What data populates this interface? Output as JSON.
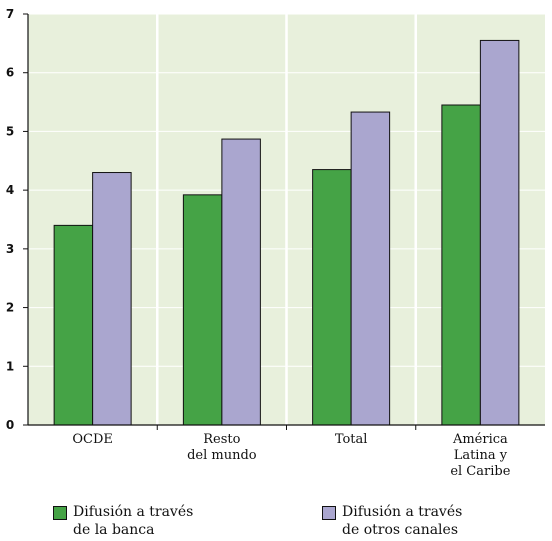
{
  "chart_data": {
    "type": "bar",
    "categories": [
      [
        "OCDE"
      ],
      [
        "Resto",
        "del mundo"
      ],
      [
        "Total"
      ],
      [
        "América",
        "Latina y",
        "el Caribe"
      ]
    ],
    "series": [
      {
        "name": "Difusión a través\nde la banca",
        "color": "#45a346",
        "values": [
          3.4,
          3.92,
          4.35,
          5.45
        ]
      },
      {
        "name": "Difusión a través\nde otros canales",
        "color": "#aaa6cf",
        "values": [
          4.3,
          4.87,
          5.33,
          6.55
        ]
      }
    ],
    "ylim": [
      0,
      7
    ],
    "yticks": [
      0,
      1,
      2,
      3,
      4,
      5,
      6,
      7
    ],
    "grid": true,
    "plot_background": "#e8f0dc",
    "legend_position": "bottom",
    "title": "",
    "xlabel": "",
    "ylabel": ""
  },
  "legend": {
    "items": [
      {
        "label": "Difusión a través\nde la banca",
        "color": "#45a346"
      },
      {
        "label": "Difusión a través\nde otros canales",
        "color": "#aaa6cf"
      }
    ]
  }
}
